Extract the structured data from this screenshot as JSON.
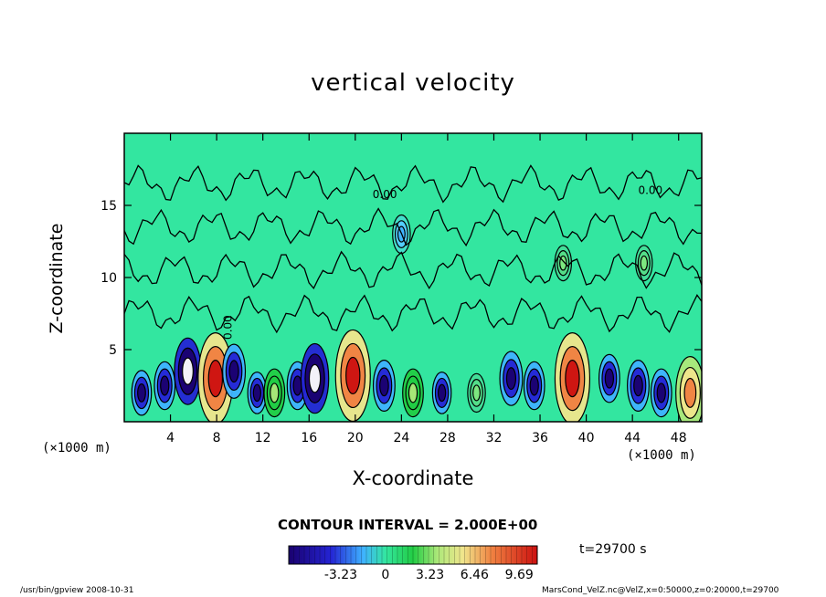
{
  "chart_data": {
    "type": "heatmap",
    "title": "vertical velocity",
    "xlabel": "X-coordinate",
    "ylabel": "Z-coordinate",
    "x_unit": "(×1000 m)",
    "xlim": [
      0,
      50
    ],
    "ylim": [
      0,
      20
    ],
    "x_ticks": [
      4,
      8,
      12,
      16,
      20,
      24,
      28,
      32,
      36,
      40,
      44,
      48
    ],
    "y_ticks": [
      5,
      10,
      15
    ],
    "contour_interval": "CONTOUR INTERVAL = 2.000E+00",
    "contour_labels": [
      "0.00",
      "0.00",
      "0.00"
    ],
    "colorbar": {
      "tick_labels": [
        "-3.23",
        "0",
        "3.23",
        "6.46",
        "9.69"
      ],
      "tick_values": [
        -3.23,
        0,
        3.23,
        6.46,
        9.69
      ],
      "range": [
        -7.0,
        11.0
      ]
    },
    "cells": [
      {
        "x": 1.5,
        "z": 2.0,
        "w": -2.5
      },
      {
        "x": 3.5,
        "z": 2.5,
        "w": -3.0
      },
      {
        "x": 5.5,
        "z": 3.5,
        "w": -6.0
      },
      {
        "x": 7.9,
        "z": 3.0,
        "w": 10.0
      },
      {
        "x": 9.5,
        "z": 3.5,
        "w": -4.0
      },
      {
        "x": 11.5,
        "z": 2.0,
        "w": -2.0
      },
      {
        "x": 13.0,
        "z": 2.0,
        "w": 3.0
      },
      {
        "x": 15.0,
        "z": 2.5,
        "w": -3.0
      },
      {
        "x": 16.5,
        "z": 3.0,
        "w": -6.5
      },
      {
        "x": 19.8,
        "z": 3.2,
        "w": 10.0
      },
      {
        "x": 22.5,
        "z": 2.5,
        "w": -3.5
      },
      {
        "x": 25.0,
        "z": 2.0,
        "w": 3.0
      },
      {
        "x": 27.5,
        "z": 2.0,
        "w": -2.0
      },
      {
        "x": 30.5,
        "z": 2.0,
        "w": 1.5
      },
      {
        "x": 33.5,
        "z": 3.0,
        "w": -4.0
      },
      {
        "x": 35.5,
        "z": 2.5,
        "w": -3.0
      },
      {
        "x": 38.8,
        "z": 3.0,
        "w": 10.0
      },
      {
        "x": 42.0,
        "z": 3.0,
        "w": -3.0
      },
      {
        "x": 44.5,
        "z": 2.5,
        "w": -3.5
      },
      {
        "x": 46.5,
        "z": 2.0,
        "w": -3.0
      },
      {
        "x": 49.0,
        "z": 2.0,
        "w": 7.0
      },
      {
        "x": 24.0,
        "z": 13.0,
        "w": -1.5
      },
      {
        "x": 38.0,
        "z": 11.0,
        "w": 1.0
      },
      {
        "x": 45.0,
        "z": 11.0,
        "w": 1.0
      }
    ]
  },
  "labels": {
    "title": "vertical velocity",
    "xlabel": "X-coordinate",
    "ylabel": "Z-coordinate",
    "x_unit_left": "(×1000 m)",
    "x_unit_right": "(×1000 m)",
    "contour_interval": "CONTOUR INTERVAL = 2.000E+00",
    "time": "t=29700 s",
    "footer_left": "/usr/bin/gpview   2008-10-31",
    "footer_right": "MarsCond_VelZ.nc@VelZ,x=0:50000,z=0:20000,t=29700"
  },
  "colors": {
    "background_field": "#33e6a0",
    "contour_line": "#000000"
  }
}
